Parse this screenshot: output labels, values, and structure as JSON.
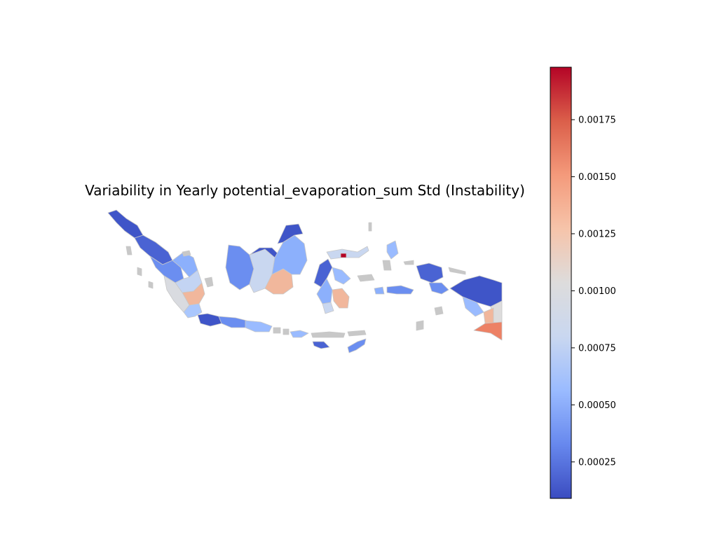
{
  "title": "Variability in Yearly potential_evaporation_sum Std (Instability)",
  "colorbar": {
    "colormap": "coolwarm",
    "vmin": 9e-05,
    "vmax": 0.00198,
    "ticks": [
      {
        "value": 0.00025,
        "label": "0.00025"
      },
      {
        "value": 0.0005,
        "label": "0.00050"
      },
      {
        "value": 0.00075,
        "label": "0.00075"
      },
      {
        "value": 0.001,
        "label": "0.00100"
      },
      {
        "value": 0.00125,
        "label": "0.00125"
      },
      {
        "value": 0.0015,
        "label": "0.00150"
      },
      {
        "value": 0.00175,
        "label": "0.00175"
      }
    ],
    "stops": [
      "#3b4cc0",
      "#6788ee",
      "#9abbff",
      "#c9d7f0",
      "#dddcdc",
      "#f6c4aa",
      "#f49a7b",
      "#db5f4a",
      "#b40426"
    ]
  },
  "colors": {
    "missing": "#c8c8c8",
    "border": "#c8c8c8"
  }
}
